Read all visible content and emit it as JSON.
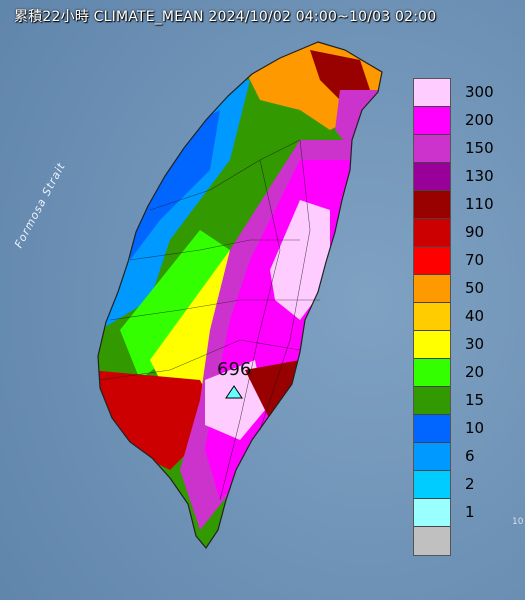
{
  "title": "累積22小時 CLIMATE_MEAN 2024/10/02 04:00~10/03 02:00",
  "map_labels": {
    "strait": "Formosa Strait",
    "max_value": "696",
    "corner": "10"
  },
  "legend": [
    {
      "label": "300",
      "color": "#ffccff"
    },
    {
      "label": "200",
      "color": "#ff00ff"
    },
    {
      "label": "150",
      "color": "#cc33cc"
    },
    {
      "label": "130",
      "color": "#990099"
    },
    {
      "label": "110",
      "color": "#990000"
    },
    {
      "label": "90",
      "color": "#cc0000"
    },
    {
      "label": "70",
      "color": "#ff0000"
    },
    {
      "label": "50",
      "color": "#ff9900"
    },
    {
      "label": "40",
      "color": "#ffcc00"
    },
    {
      "label": "30",
      "color": "#ffff00"
    },
    {
      "label": "20",
      "color": "#33ff00"
    },
    {
      "label": "15",
      "color": "#339900"
    },
    {
      "label": "10",
      "color": "#0066ff"
    },
    {
      "label": "6",
      "color": "#0099ff"
    },
    {
      "label": "2",
      "color": "#00ccff"
    },
    {
      "label": "1",
      "color": "#99ffff"
    },
    {
      "label": "",
      "color": "#c0c0c0"
    }
  ]
}
